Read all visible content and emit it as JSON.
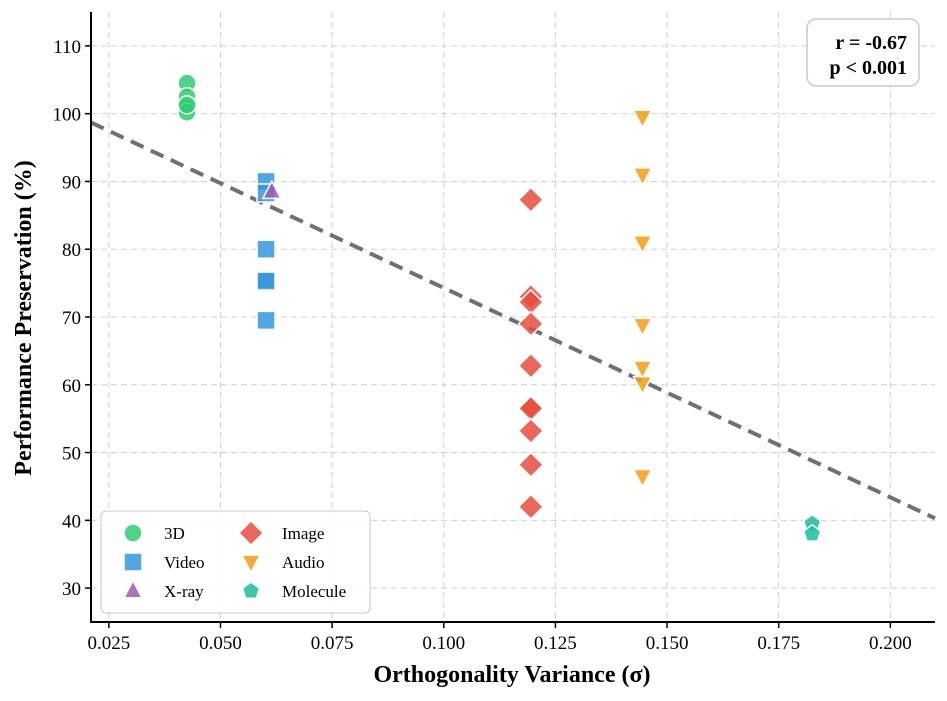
{
  "chart_data": {
    "type": "scatter",
    "xlabel": "Orthogonality Variance (σ)",
    "ylabel": "Performance Preservation (%)",
    "xlim": [
      0.021,
      0.21
    ],
    "ylim": [
      25,
      115
    ],
    "xticks": [
      "0.025",
      "0.050",
      "0.075",
      "0.100",
      "0.125",
      "0.150",
      "0.175",
      "0.200"
    ],
    "xtick_values": [
      0.025,
      0.05,
      0.075,
      0.1,
      0.125,
      0.15,
      0.175,
      0.2
    ],
    "yticks": [
      "30",
      "40",
      "50",
      "60",
      "70",
      "80",
      "90",
      "100",
      "110"
    ],
    "ytick_values": [
      30,
      40,
      50,
      60,
      70,
      80,
      90,
      100,
      110
    ],
    "grid": true,
    "legend_position": "bottom-left",
    "series": [
      {
        "name": "3D",
        "color": "#2ecc71",
        "marker": "circle",
        "points": [
          [
            0.0425,
            104.5
          ],
          [
            0.0425,
            102.5
          ],
          [
            0.0425,
            101.0
          ],
          [
            0.0425,
            100.2
          ],
          [
            0.0425,
            101.3
          ]
        ]
      },
      {
        "name": "Video",
        "color": "#3498db",
        "marker": "square",
        "points": [
          [
            0.0602,
            90.0
          ],
          [
            0.0602,
            88.3
          ],
          [
            0.0602,
            80.0
          ],
          [
            0.0602,
            75.5
          ],
          [
            0.0602,
            75.3
          ],
          [
            0.0602,
            69.5
          ]
        ]
      },
      {
        "name": "X-ray",
        "color": "#9b59b6",
        "marker": "triangle-up",
        "points": [
          [
            0.0615,
            88.5
          ]
        ]
      },
      {
        "name": "Image",
        "color": "#e74c3c",
        "marker": "diamond",
        "points": [
          [
            0.1195,
            87.3
          ],
          [
            0.1195,
            73.0
          ],
          [
            0.1195,
            72.2
          ],
          [
            0.1195,
            69.0
          ],
          [
            0.1195,
            62.8
          ],
          [
            0.1195,
            56.8
          ],
          [
            0.1195,
            56.5
          ],
          [
            0.1195,
            53.2
          ],
          [
            0.1195,
            48.2
          ],
          [
            0.1195,
            42.0
          ]
        ]
      },
      {
        "name": "Audio",
        "color": "#f39c12",
        "marker": "triangle-down",
        "points": [
          [
            0.1445,
            99.5
          ],
          [
            0.1445,
            91.0
          ],
          [
            0.1445,
            81.0
          ],
          [
            0.1445,
            68.8
          ],
          [
            0.1445,
            62.5
          ],
          [
            0.1445,
            60.2
          ],
          [
            0.1445,
            46.5
          ]
        ]
      },
      {
        "name": "Molecule",
        "color": "#1abc9c",
        "marker": "pentagon",
        "points": [
          [
            0.1825,
            39.5
          ],
          [
            0.1825,
            38.0
          ]
        ]
      }
    ],
    "trend_line": {
      "style": "dashed",
      "color": "#707070",
      "points": [
        [
          0.021,
          98.7
        ],
        [
          0.21,
          40.3
        ]
      ]
    },
    "annotation": {
      "line1": "r = -0.67",
      "line2": "p < 0.001",
      "position": "top-right"
    }
  }
}
